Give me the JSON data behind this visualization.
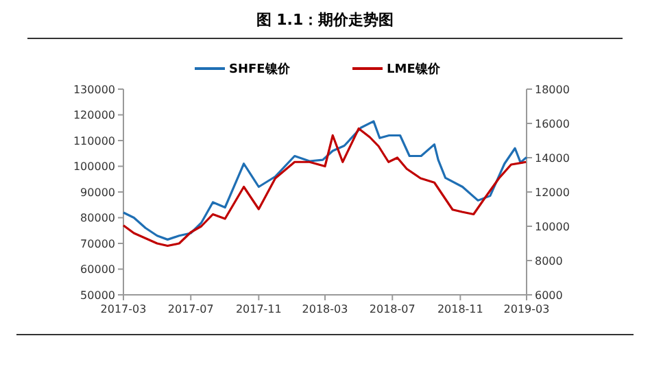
{
  "chart_data": {
    "type": "line",
    "title": "图 1.1：期价走势图",
    "legend": "top",
    "grid": false,
    "xlim": [
      "2017-03",
      "2019-03"
    ],
    "xticks": [
      "2017-03",
      "2017-07",
      "2017-11",
      "2018-03",
      "2018-07",
      "2018-11",
      "2019-03"
    ],
    "ylim": [
      50000,
      130000
    ],
    "yticks": [
      50000,
      60000,
      70000,
      80000,
      90000,
      100000,
      110000,
      120000,
      130000
    ],
    "y2lim": [
      6000,
      18000
    ],
    "y2ticks": [
      6000,
      8000,
      10000,
      12000,
      14000,
      16000,
      18000
    ],
    "series": [
      {
        "name": "SHFE镍价",
        "color": "#1f6fb4",
        "x": [
          "2017-03-01",
          "2017-03-20",
          "2017-04-10",
          "2017-05-01",
          "2017-05-20",
          "2017-06-10",
          "2017-07-01",
          "2017-07-20",
          "2017-08-10",
          "2017-09-01",
          "2017-10-05",
          "2017-11-01",
          "2017-12-01",
          "2018-01-05",
          "2018-02-01",
          "2018-02-25",
          "2018-03-15",
          "2018-04-05",
          "2018-05-05",
          "2018-05-28",
          "2018-06-08",
          "2018-06-25",
          "2018-07-15",
          "2018-08-01",
          "2018-08-22",
          "2018-09-15",
          "2018-09-22",
          "2018-10-05",
          "2018-11-05",
          "2018-12-03",
          "2018-12-25",
          "2019-01-20",
          "2019-02-08",
          "2019-02-18",
          "2019-03-01"
        ],
        "values": [
          82000,
          80000,
          76000,
          73000,
          71500,
          73000,
          74000,
          78000,
          86000,
          84000,
          101000,
          92000,
          96000,
          104000,
          102000,
          102500,
          106000,
          108000,
          115000,
          117500,
          111000,
          112000,
          112000,
          104000,
          104000,
          108500,
          102500,
          95500,
          92000,
          86700,
          88500,
          101000,
          107000,
          101500,
          103500
        ]
      },
      {
        "name": "LME镍价",
        "color": "#c00000",
        "axis": "y2",
        "x": [
          "2017-03-01",
          "2017-03-20",
          "2017-04-10",
          "2017-05-01",
          "2017-05-20",
          "2017-06-10",
          "2017-07-01",
          "2017-07-20",
          "2017-08-10",
          "2017-09-01",
          "2017-10-05",
          "2017-11-01",
          "2017-12-01",
          "2018-01-05",
          "2018-02-01",
          "2018-03-01",
          "2018-03-15",
          "2018-04-02",
          "2018-05-01",
          "2018-05-21",
          "2018-06-06",
          "2018-06-24",
          "2018-07-10",
          "2018-07-27",
          "2018-08-21",
          "2018-09-15",
          "2018-10-18",
          "2018-11-04",
          "2018-11-25",
          "2018-12-15",
          "2019-01-10",
          "2019-02-01",
          "2019-02-28"
        ],
        "values": [
          10050,
          9600,
          9300,
          9000,
          8860,
          9000,
          9650,
          10000,
          10700,
          10440,
          12300,
          11000,
          12800,
          13750,
          13750,
          13500,
          15300,
          13750,
          15700,
          15200,
          14670,
          13750,
          14000,
          13350,
          12800,
          12550,
          10970,
          10840,
          10700,
          11630,
          12800,
          13600,
          13750
        ]
      }
    ]
  }
}
